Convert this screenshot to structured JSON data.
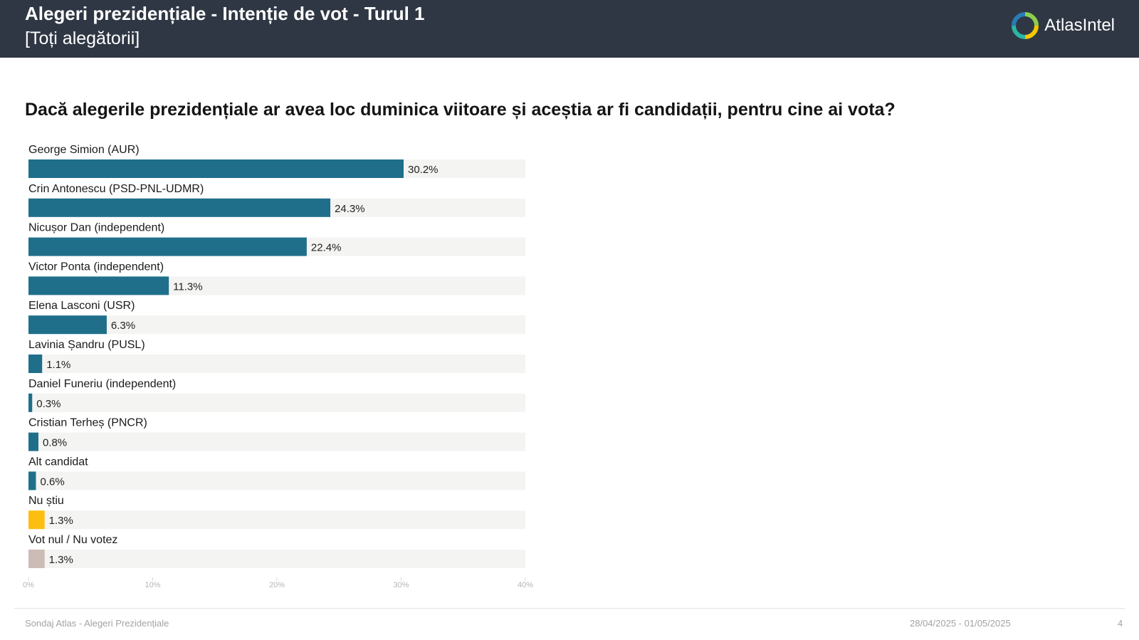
{
  "header": {
    "title": "Alegeri prezidențiale - Intenție de vot - Turul 1",
    "subtitle": "[Toți alegătorii]",
    "logo_text": "AtlasIntel",
    "logo_icon": "atlasintel-logo-icon"
  },
  "question": "Dacă alegerile prezidențiale ar avea loc duminica viitoare și aceștia ar fi candidații, pentru cine ai vota?",
  "colors": {
    "header_bg": "#2f3744",
    "candidate_bar": "#1f6f8b",
    "nu_stiu_bar": "#fdbe10",
    "vot_nul_bar": "#cdbcb6",
    "track": "#f4f4f2"
  },
  "chart_data": {
    "type": "bar",
    "orientation": "horizontal",
    "categories": [
      "George Simion (AUR)",
      "Crin Antonescu (PSD-PNL-UDMR)",
      "Nicușor Dan (independent)",
      "Victor Ponta (independent)",
      "Elena Lasconi (USR)",
      "Lavinia Șandru (PUSL)",
      "Daniel Funeriu (independent)",
      "Cristian Terheș (PNCR)",
      "Alt candidat",
      "Nu știu",
      "Vot nul / Nu votez"
    ],
    "values": [
      30.2,
      24.3,
      22.4,
      11.3,
      6.3,
      1.1,
      0.3,
      0.8,
      0.6,
      1.3,
      1.3
    ],
    "value_labels": [
      "30.2%",
      "24.3%",
      "22.4%",
      "11.3%",
      "6.3%",
      "1.1%",
      "0.3%",
      "0.8%",
      "0.6%",
      "1.3%",
      "1.3%"
    ],
    "bar_colors": [
      "#1f6f8b",
      "#1f6f8b",
      "#1f6f8b",
      "#1f6f8b",
      "#1f6f8b",
      "#1f6f8b",
      "#1f6f8b",
      "#1f6f8b",
      "#1f6f8b",
      "#fdbe10",
      "#cdbcb6"
    ],
    "xlim": [
      0,
      40
    ],
    "xticks": [
      0,
      10,
      20,
      30,
      40
    ],
    "xtick_labels": [
      "0%",
      "10%",
      "20%",
      "30%",
      "40%"
    ],
    "grid": false,
    "legend": "none"
  },
  "footer": {
    "source": "Sondaj Atlas - Alegeri Prezidențiale",
    "date_range": "28/04/2025 - 01/05/2025",
    "page_number": "4"
  }
}
